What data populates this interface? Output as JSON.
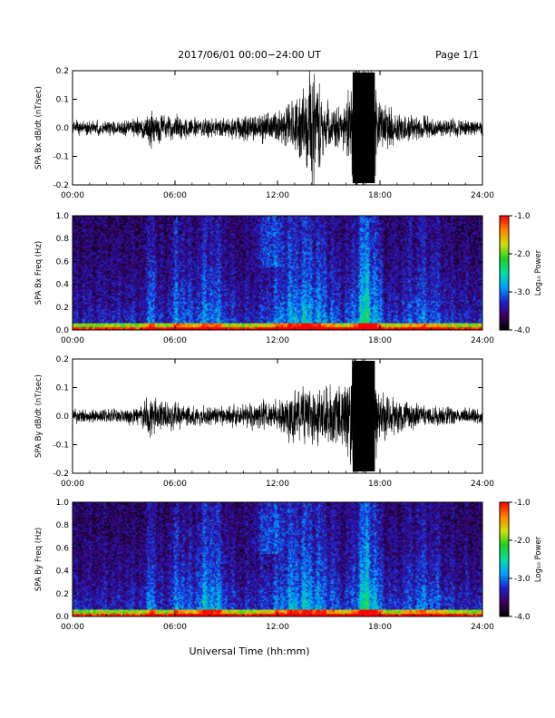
{
  "header": {
    "title": "2017/06/01  00:00−24:00 UT",
    "page": "Page 1/1"
  },
  "footer": {
    "xlabel": "Universal Time (hh:mm)"
  },
  "colorbar": {
    "label": "Log₁₀ Power",
    "ticks": [
      "-1.0",
      "-2.0",
      "-3.0",
      "-4.0"
    ],
    "range": [
      -4.0,
      -1.0
    ],
    "colormap": [
      "#000000",
      "#3a0060",
      "#2020d0",
      "#00a0ff",
      "#00e0a0",
      "#20d020",
      "#d0e000",
      "#ff8000",
      "#ff0000"
    ]
  },
  "chart_data": [
    {
      "type": "line",
      "ylabel": "SPA Bx dB/dt (nT/sec)",
      "xlim": [
        0,
        24
      ],
      "ylim": [
        -0.2,
        0.2
      ],
      "x_ticks": [
        "00:00",
        "06:00",
        "12:00",
        "18:00",
        "24:00"
      ],
      "y_ticks": [
        "-0.2",
        "-0.1",
        "0.0",
        "0.1",
        "0.2"
      ],
      "activity_profile": {
        "hours": [
          0,
          2,
          4,
          4.5,
          5,
          6,
          7,
          9,
          11,
          12,
          13,
          14,
          15,
          16,
          16.5,
          17,
          18,
          19,
          20,
          22,
          24
        ],
        "amplitude": [
          0.03,
          0.03,
          0.04,
          0.08,
          0.06,
          0.05,
          0.04,
          0.04,
          0.06,
          0.07,
          0.12,
          0.25,
          0.1,
          0.09,
          0.3,
          0.35,
          0.12,
          0.06,
          0.05,
          0.04,
          0.03
        ]
      },
      "color": "#000000"
    },
    {
      "type": "heatmap",
      "ylabel": "SPA Bx Freq (Hz)",
      "xlim": [
        0,
        24
      ],
      "ylim": [
        0.0,
        1.0
      ],
      "x_ticks": [
        "00:00",
        "06:00",
        "12:00",
        "18:00",
        "24:00"
      ],
      "y_ticks": [
        "0.0",
        "0.2",
        "0.4",
        "0.6",
        "0.8",
        "1.0"
      ],
      "value_range": [
        -4.0,
        -1.0
      ]
    },
    {
      "type": "line",
      "ylabel": "SPA By dB/dt (nT/sec)",
      "xlim": [
        0,
        24
      ],
      "ylim": [
        -0.2,
        0.2
      ],
      "x_ticks": [
        "00:00",
        "06:00",
        "12:00",
        "18:00",
        "24:00"
      ],
      "y_ticks": [
        "-0.2",
        "-0.1",
        "0.0",
        "0.1",
        "0.2"
      ],
      "activity_profile": {
        "hours": [
          0,
          2,
          4,
          4.5,
          5,
          6,
          7,
          9,
          11,
          12,
          13,
          14,
          15,
          16,
          16.5,
          17,
          18,
          19,
          20,
          22,
          24
        ],
        "amplitude": [
          0.03,
          0.03,
          0.04,
          0.09,
          0.06,
          0.06,
          0.04,
          0.04,
          0.06,
          0.07,
          0.11,
          0.12,
          0.12,
          0.14,
          0.3,
          0.35,
          0.1,
          0.07,
          0.05,
          0.04,
          0.03
        ]
      },
      "color": "#000000"
    },
    {
      "type": "heatmap",
      "ylabel": "SPA By Freq (Hz)",
      "xlim": [
        0,
        24
      ],
      "ylim": [
        0.0,
        1.0
      ],
      "x_ticks": [
        "00:00",
        "06:00",
        "12:00",
        "18:00",
        "24:00"
      ],
      "y_ticks": [
        "0.0",
        "0.2",
        "0.4",
        "0.6",
        "0.8",
        "1.0"
      ],
      "value_range": [
        -4.0,
        -1.0
      ]
    }
  ]
}
